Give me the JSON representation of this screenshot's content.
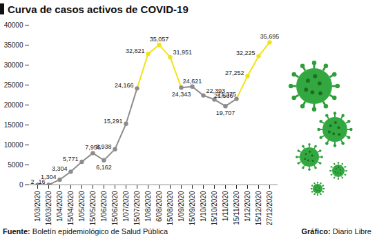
{
  "chart_data": {
    "type": "line",
    "title": "Curva de casos activos de COVID-19",
    "source": "Fuente: Boletín epidemiológico de Salud Pública",
    "credit": "Gráfico: Diario Libre",
    "categories": [
      "1/03/2020",
      "16/03/2020",
      "1/04/2020",
      "15/04/2020",
      "1/05/2020",
      "15/05/2020",
      "1/06/2020",
      "15/06/2020",
      "1/07/2020",
      "15/07/2020",
      "1/08/2020",
      "6/08/2020",
      "15/08/2020",
      "1/09/2020",
      "15/09/2020",
      "1/10/2020",
      "15/10/2020",
      "1/11/2020",
      "15/11/2020",
      "1/12/2020",
      "15/12/2020",
      "27/12/2020"
    ],
    "values": [
      2,
      16,
      1304,
      3304,
      5771,
      7956,
      6162,
      8938,
      15291,
      24166,
      32821,
      35057,
      31951,
      24343,
      24621,
      22393,
      21375,
      19707,
      21536,
      27252,
      32225,
      35695
    ],
    "value_labels": [
      "2",
      "16",
      "1,304",
      "3,304",
      "5,771",
      "7,956",
      "6,162",
      "8,938",
      "15,291",
      "24,166",
      "32,821",
      "35,057",
      "31,951",
      "24,343",
      "24,621",
      "22,393",
      "21,375",
      "19,707",
      "21,536",
      "27,252",
      "32,225",
      "35,695"
    ],
    "colors": [
      "#8c8c8c",
      "#8c8c8c",
      "#8c8c8c",
      "#8c8c8c",
      "#8c8c8c",
      "#8c8c8c",
      "#8c8c8c",
      "#8c8c8c",
      "#8c8c8c",
      "#8c8c8c",
      "#f2e21b",
      "#f2e21b",
      "#f2e21b",
      "#8c8c8c",
      "#8c8c8c",
      "#8c8c8c",
      "#8c8c8c",
      "#8c8c8c",
      "#8c8c8c",
      "#f2e21b",
      "#f2e21b",
      "#f2e21b"
    ],
    "ylim": [
      0,
      40000
    ],
    "yticks": [
      0,
      5000,
      10000,
      15000,
      20000,
      25000,
      30000,
      35000,
      40000
    ],
    "grid": false,
    "data_labels": true,
    "marker": "circle"
  }
}
